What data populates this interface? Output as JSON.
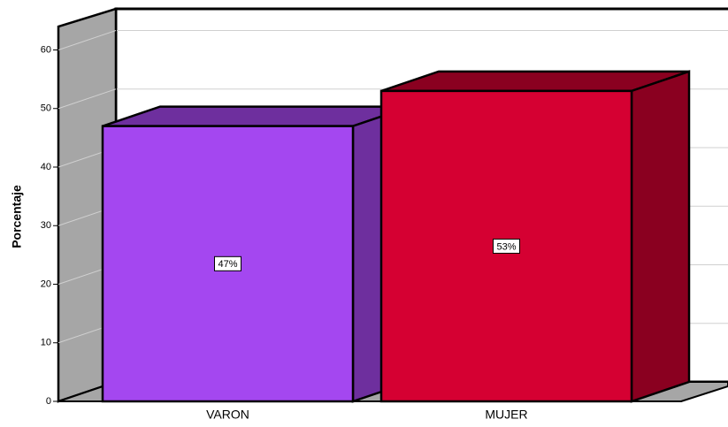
{
  "chart_data": {
    "type": "bar3d",
    "categories": [
      "VARON",
      "MUJER"
    ],
    "values": [
      47,
      53
    ],
    "value_labels": [
      "47%",
      "53%"
    ],
    "colors": [
      "#a447f0",
      "#d50032"
    ],
    "side_colors": [
      "#6e2f9e",
      "#8a0020"
    ],
    "ylabel": "Porcentaje",
    "ylim": [
      0,
      64
    ],
    "yticks": [
      0,
      10,
      20,
      30,
      40,
      50,
      60
    ],
    "grid": true
  }
}
